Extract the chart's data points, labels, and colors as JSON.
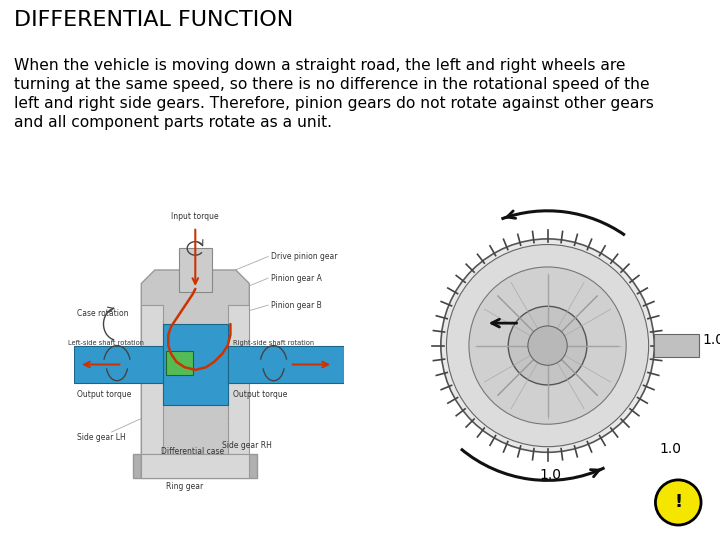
{
  "title": "DIFFERENTIAL FUNCTION",
  "background_color": "#ffffff",
  "title_color": "#000000",
  "body_color": "#000000",
  "title_fontsize": 16,
  "body_fontsize": 11.2,
  "title_font": "DejaVu Sans",
  "body_font": "DejaVu Sans",
  "body_lines": [
    "When the vehicle is moving down a straight road, the left and right wheels are",
    "turning at the same speed, so there is no difference in the rotational speed of the",
    "left and right side gears. Therefore, pinion gears do not rotate against other gears",
    "and all component parts rotate as a unit."
  ],
  "warning_circle_color": "#f5e600",
  "warning_outline_color": "#000000",
  "warning_text": "!",
  "warning_text_color": "#000000",
  "warning_text_fontsize": 13,
  "label_color": "#333333",
  "label_fontsize": 5.5,
  "shaft_blue": "#3399cc",
  "shaft_blue_dark": "#1a6688",
  "case_grey": "#c8c8c8",
  "case_grey_dark": "#999999",
  "green_elem": "#55bb55",
  "red_torque": "#cc3300",
  "ring_grey": "#b0b0b0"
}
